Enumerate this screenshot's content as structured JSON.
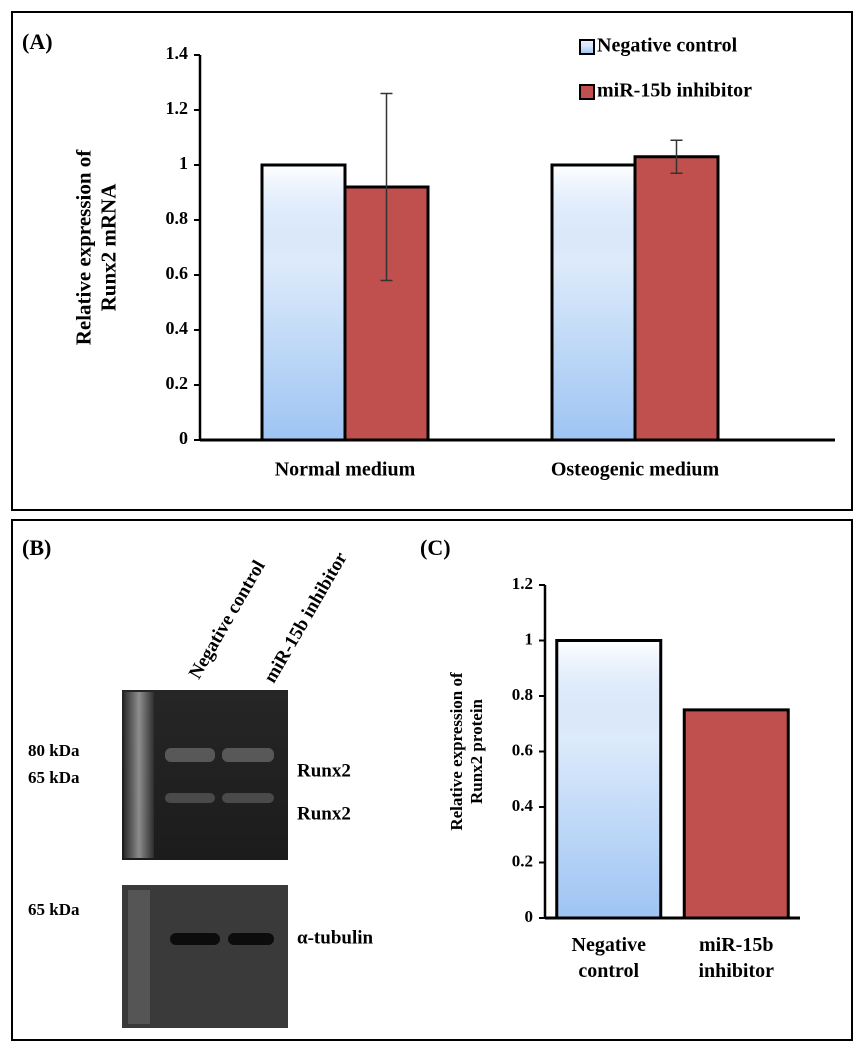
{
  "panel_labels": [
    "(A)",
    "(B)",
    "(C)"
  ],
  "chart_data": [
    {
      "type": "bar",
      "ylabel": [
        "Relative expression of",
        "Runx2 mRNA"
      ],
      "categories": [
        "Normal medium",
        "Osteogenic medium"
      ],
      "series": [
        {
          "name": "Negative control",
          "color": "#9ec4f3",
          "fill_style": "gradient",
          "values": [
            1,
            1
          ]
        },
        {
          "name": "miR-15b inhibitor",
          "color": "#c0504d",
          "values": [
            0.92,
            1.03
          ],
          "errors": [
            0.34,
            0.06
          ]
        }
      ],
      "ylim": [
        0,
        1.4
      ],
      "yticks": [
        0,
        0.2,
        0.4,
        0.6,
        0.8,
        1,
        1.2,
        1.4
      ],
      "legend": "top-right"
    },
    {
      "type": "bar",
      "ylabel": [
        "Relative expression of",
        "Runx2 protein"
      ],
      "categories": [
        "Negative control",
        "miR-15b inhibitor"
      ],
      "values": [
        1,
        0.75
      ],
      "colors": [
        "#9ec4f3",
        "#c0504d"
      ],
      "fill_styles": [
        "gradient",
        "flat"
      ],
      "ylim": [
        0,
        1.2
      ],
      "yticks": [
        0,
        0.2,
        0.4,
        0.6,
        0.8,
        1,
        1.2
      ]
    }
  ],
  "blot": {
    "lanes": [
      "Negative control",
      "miR-15b inhibitor"
    ],
    "markers": [
      "80 kDa",
      "65 kDa",
      "65 kDa"
    ],
    "bands": [
      "Runx2",
      "Runx2",
      "α-tubulin"
    ]
  }
}
